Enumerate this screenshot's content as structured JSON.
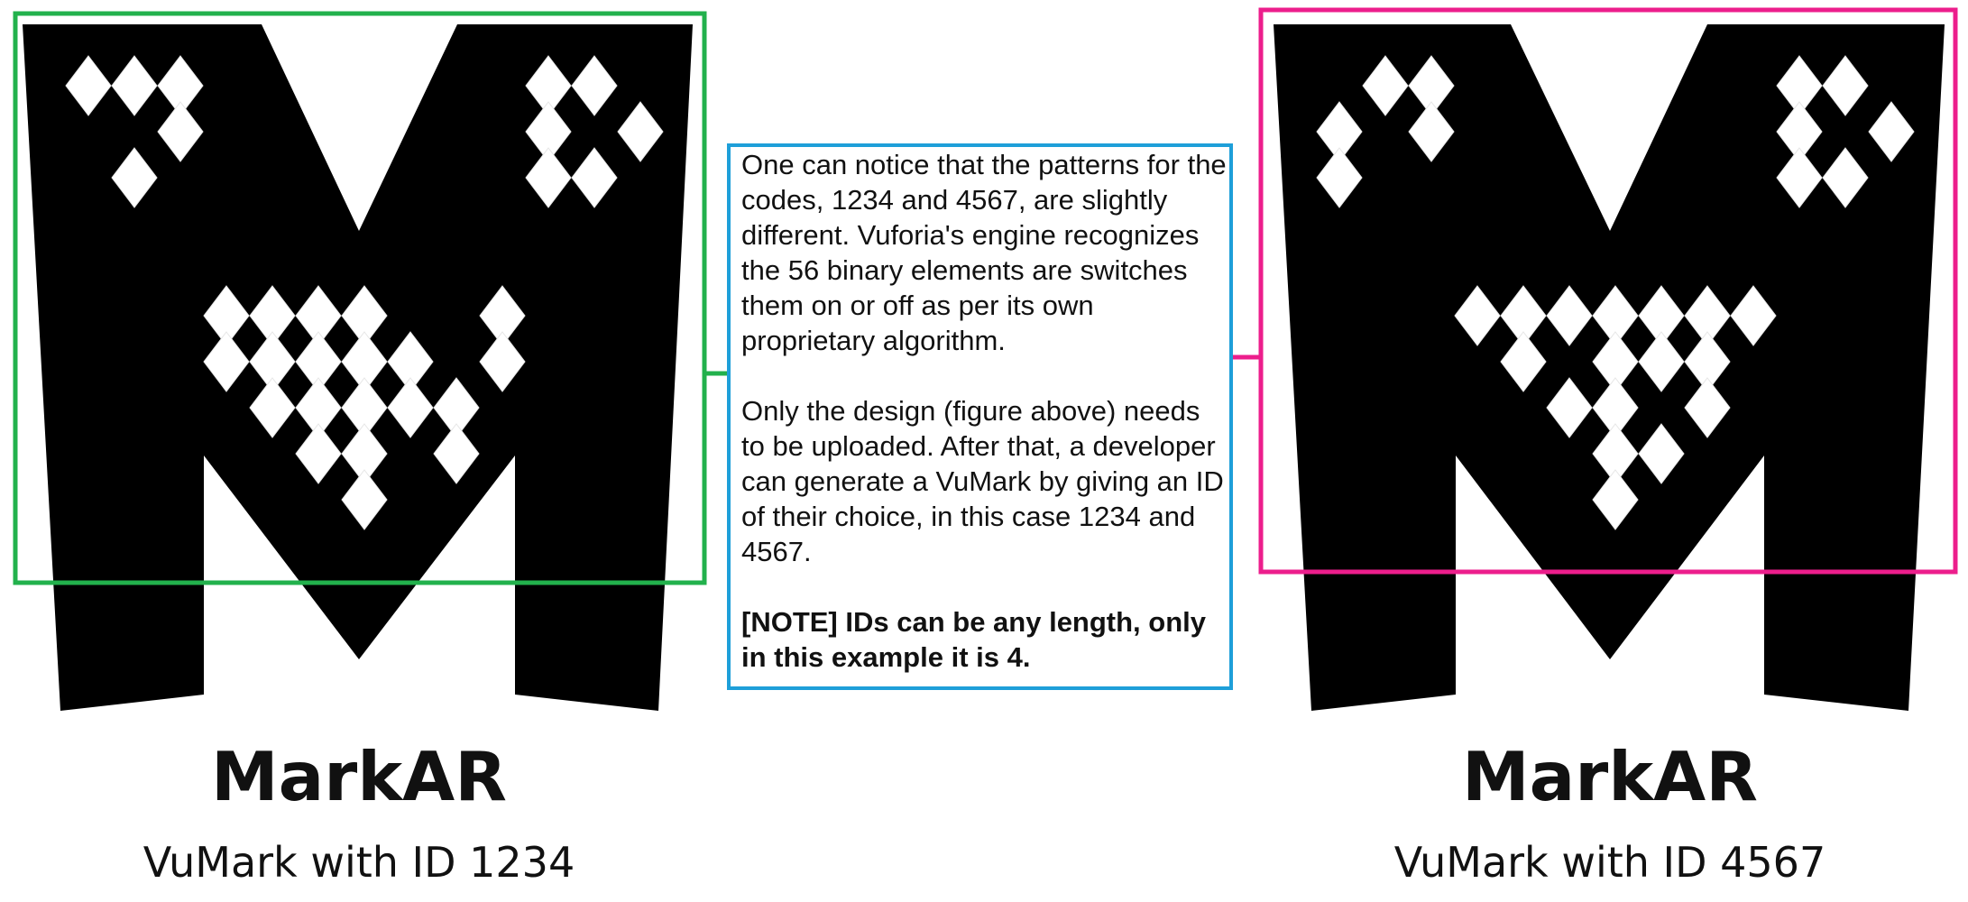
{
  "colors": {
    "marker": "#000000",
    "diamond": "#ffffff",
    "marker1_box": "#22b14c",
    "marker2_box": "#ec1e8c",
    "note_box": "#1e9fd9"
  },
  "markers": [
    {
      "title": "MarkAR",
      "caption": "VuMark with ID 1234",
      "diamonds": [
        [
          0,
          0
        ],
        [
          1,
          0
        ],
        [
          2,
          0
        ],
        [
          2,
          1
        ],
        [
          1,
          2
        ],
        [
          10,
          0
        ],
        [
          11,
          0
        ],
        [
          10,
          1
        ],
        [
          12,
          1
        ],
        [
          10,
          2
        ],
        [
          11,
          2
        ],
        [
          3,
          5
        ],
        [
          4,
          5
        ],
        [
          5,
          5
        ],
        [
          6,
          5
        ],
        [
          9,
          5
        ],
        [
          3,
          6
        ],
        [
          4,
          6
        ],
        [
          5,
          6
        ],
        [
          6,
          6
        ],
        [
          7,
          6
        ],
        [
          9,
          6
        ],
        [
          4,
          7
        ],
        [
          5,
          7
        ],
        [
          6,
          7
        ],
        [
          7,
          7
        ],
        [
          8,
          7
        ],
        [
          5,
          8
        ],
        [
          6,
          8
        ],
        [
          8,
          8
        ],
        [
          6,
          9
        ]
      ]
    },
    {
      "title": "MarkAR",
      "caption": "VuMark with ID 4567",
      "diamonds": [
        [
          1,
          0
        ],
        [
          2,
          0
        ],
        [
          0,
          1
        ],
        [
          2,
          1
        ],
        [
          0,
          2
        ],
        [
          10,
          0
        ],
        [
          11,
          0
        ],
        [
          10,
          1
        ],
        [
          12,
          1
        ],
        [
          10,
          2
        ],
        [
          11,
          2
        ],
        [
          3,
          5
        ],
        [
          4,
          5
        ],
        [
          5,
          5
        ],
        [
          6,
          5
        ],
        [
          7,
          5
        ],
        [
          8,
          5
        ],
        [
          9,
          5
        ],
        [
          4,
          6
        ],
        [
          6,
          6
        ],
        [
          7,
          6
        ],
        [
          8,
          6
        ],
        [
          5,
          7
        ],
        [
          6,
          7
        ],
        [
          8,
          7
        ],
        [
          6,
          8
        ],
        [
          7,
          8
        ],
        [
          6,
          9
        ]
      ]
    }
  ],
  "note": {
    "paragraph1": "One can notice that the patterns for the codes, 1234 and 4567, are slightly different. Vuforia's engine recognizes the 56 binary elements are switches them on or off as per its own proprietary algorithm.",
    "paragraph2": "Only the design (figure above) needs to be uploaded. After that, a developer can generate a VuMark by giving an ID of their choice, in this case 1234 and 4567.",
    "paragraph3": "[NOTE] IDs can be any length, only in this example it is 4."
  }
}
